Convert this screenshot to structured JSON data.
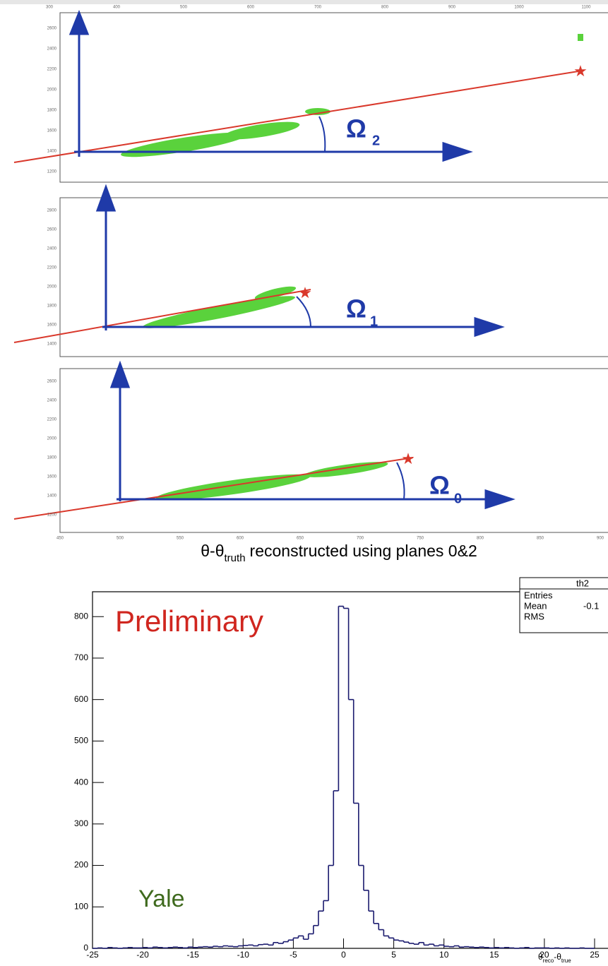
{
  "event_display": {
    "top_xticks": [
      "300",
      "400",
      "500",
      "600",
      "700",
      "800",
      "900",
      "1000",
      "1100"
    ],
    "bottom_xticks": [
      "450",
      "500",
      "550",
      "600",
      "650",
      "700",
      "750",
      "800",
      "850",
      "900"
    ],
    "panels": [
      {
        "label": "Ω",
        "subscript": "2",
        "yticks": [
          "2600",
          "2400",
          "2200",
          "2000",
          "1800",
          "1600",
          "1400",
          "1200"
        ]
      },
      {
        "label": "Ω",
        "subscript": "1",
        "yticks": [
          "2800",
          "2600",
          "2400",
          "2200",
          "2000",
          "1800",
          "1600",
          "1400"
        ]
      },
      {
        "label": "Ω",
        "subscript": "0",
        "yticks": [
          "2600",
          "2400",
          "2200",
          "2000",
          "1800",
          "1600",
          "1400",
          "1200"
        ]
      }
    ]
  },
  "chart_data": {
    "type": "histogram",
    "title": {
      "main": "θ-θ",
      "sub": "truth",
      "rest": "reconstructed using planes 0&2"
    },
    "x_label": {
      "a": "θ",
      "a_sub": "reco",
      "b": "-θ",
      "b_sub": "true"
    },
    "annotations": [
      "Preliminary",
      "Yale"
    ],
    "stats": {
      "name": "th2",
      "rows": [
        "Entries",
        "Mean",
        "RMS"
      ],
      "mean_value": "-0.1"
    },
    "color": "#1a1a6e",
    "xlim": [
      -25,
      25
    ],
    "ylim": [
      0,
      860
    ],
    "xticks": [
      -25,
      -20,
      -15,
      -10,
      -5,
      0,
      5,
      10,
      15,
      20,
      25
    ],
    "yticks": [
      0,
      100,
      200,
      300,
      400,
      500,
      600,
      700,
      800
    ],
    "bins": [
      -25,
      -24.5,
      -24,
      -23.5,
      -23,
      -22.5,
      -22,
      -21.5,
      -21,
      -20.5,
      -20,
      -19.5,
      -19,
      -18.5,
      -18,
      -17.5,
      -17,
      -16.5,
      -16,
      -15.5,
      -15,
      -14.5,
      -14,
      -13.5,
      -13,
      -12.5,
      -12,
      -11.5,
      -11,
      -10.5,
      -10,
      -9.5,
      -9,
      -8.5,
      -8,
      -7.5,
      -7,
      -6.5,
      -6,
      -5.5,
      -5,
      -4.5,
      -4,
      -3.5,
      -3,
      -2.5,
      -2,
      -1.5,
      -1,
      -0.5,
      0,
      0.5,
      1,
      1.5,
      2,
      2.5,
      3,
      3.5,
      4,
      4.5,
      5,
      5.5,
      6,
      6.5,
      7,
      7.5,
      8,
      8.5,
      9,
      9.5,
      10,
      10.5,
      11,
      11.5,
      12,
      12.5,
      13,
      13.5,
      14,
      14.5,
      15,
      15.5,
      16,
      16.5,
      17,
      17.5,
      18,
      18.5,
      19,
      19.5,
      20,
      20.5,
      21,
      21.5,
      22,
      22.5,
      23,
      23.5,
      24,
      24.5,
      25
    ],
    "values": [
      0,
      1,
      0,
      2,
      1,
      0,
      1,
      2,
      1,
      1,
      2,
      1,
      3,
      2,
      1,
      2,
      3,
      2,
      1,
      3,
      2,
      3,
      4,
      3,
      5,
      4,
      6,
      5,
      4,
      6,
      7,
      8,
      6,
      9,
      10,
      8,
      14,
      12,
      16,
      20,
      25,
      30,
      22,
      35,
      55,
      90,
      115,
      200,
      380,
      825,
      820,
      600,
      350,
      200,
      140,
      90,
      60,
      45,
      30,
      25,
      20,
      18,
      15,
      12,
      10,
      14,
      8,
      10,
      6,
      8,
      5,
      4,
      6,
      3,
      4,
      3,
      2,
      3,
      2,
      1,
      2,
      1,
      2,
      1,
      0,
      1,
      2,
      0,
      1,
      1,
      1,
      0,
      1,
      0,
      1,
      0,
      0,
      1,
      0,
      0
    ]
  }
}
